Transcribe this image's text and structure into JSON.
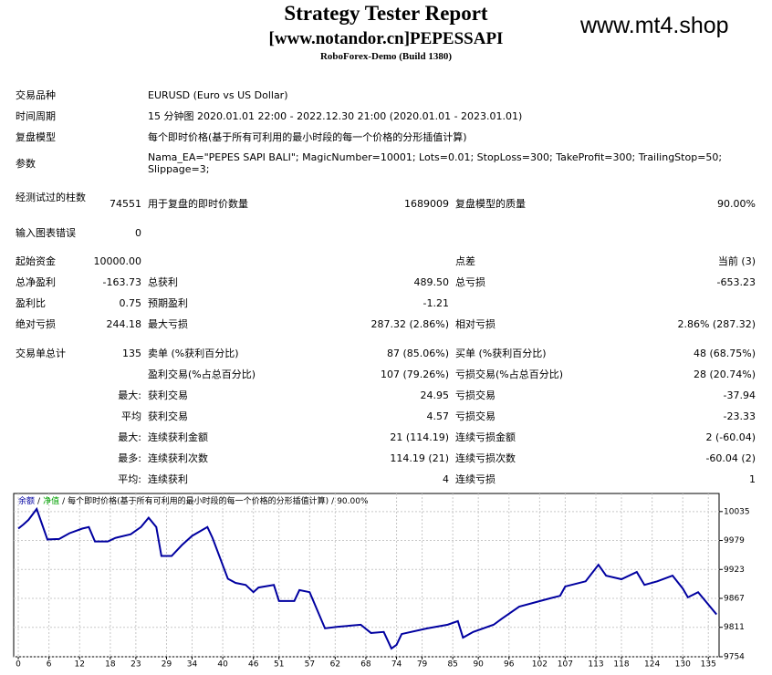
{
  "header": {
    "title": "Strategy Tester Report",
    "subtitle": "[www.notandor.cn]PEPESSAPI",
    "server": "RoboForex-Demo (Build 1380)",
    "watermark": "www.mt4.shop"
  },
  "info": [
    {
      "label": "交易品种",
      "value": "EURUSD (Euro vs US Dollar)"
    },
    {
      "label": "时间周期",
      "value": "15 分钟图 2020.01.01 22:00 - 2022.12.30 21:00 (2020.01.01 - 2023.01.01)"
    },
    {
      "label": "复盘模型",
      "value": "每个即时价格(基于所有可利用的最小时段的每一个价格的分形插值计算)"
    },
    {
      "label": "参数",
      "value": "Nama_EA=\"PEPES SAPI BALI\"; MagicNumber=10001; Lots=0.01; StopLoss=300; TakeProfit=300; TrailingStop=50; Slippage=3;"
    }
  ],
  "stats": [
    [
      "经测试过的柱数",
      "74551",
      "用于复盘的即时价数量",
      "1689009",
      "复盘模型的质量",
      "90.00%"
    ],
    [
      "输入图表错误",
      "0",
      null,
      null,
      null,
      null
    ],
    [
      "起始资金",
      "10000.00",
      null,
      null,
      "点差",
      "当前 (3)"
    ],
    [
      "总净盈利",
      "-163.73",
      "总获利",
      "489.50",
      "总亏损",
      "-653.23"
    ],
    [
      "盈利比",
      "0.75",
      "预期盈利",
      "-1.21",
      null,
      null
    ],
    [
      "绝对亏损",
      "244.18",
      "最大亏损",
      "287.32 (2.86%)",
      "相对亏损",
      "2.86% (287.32)"
    ],
    [
      "交易单总计",
      "135",
      "卖单 (%获利百分比)",
      "87 (85.06%)",
      "买单 (%获利百分比)",
      "48 (68.75%)"
    ],
    [
      null,
      null,
      "盈利交易(%占总百分比)",
      "107 (79.26%)",
      "亏损交易(%占总百分比)",
      "28 (20.74%)"
    ],
    [
      null,
      "最大:",
      "获利交易",
      "24.95",
      "亏损交易",
      "-37.94"
    ],
    [
      null,
      "平均",
      "获利交易",
      "4.57",
      "亏损交易",
      "-23.33"
    ],
    [
      null,
      "最大:",
      "连续获利金额",
      "21 (114.19)",
      "连续亏损金额",
      "2 (-60.04)"
    ],
    [
      null,
      "最多:",
      "连续获利次数",
      "114.19 (21)",
      "连续亏损次数",
      "-60.04 (2)"
    ],
    [
      null,
      "平均:",
      "连续获利",
      "4",
      "连续亏损",
      "1"
    ]
  ],
  "chart_data": {
    "type": "line",
    "separator": "/",
    "legend_extra": [
      {
        "text": "净值",
        "color": "#00a000"
      },
      {
        "text": "每个即时价格(基于所有可利用的最小时段的每一个价格的分形插值计算)",
        "color": "#000000"
      },
      {
        "text": "90.00%",
        "color": "#000000"
      }
    ],
    "x": [
      0,
      1,
      2,
      3.6,
      5.7,
      8,
      10,
      12.5,
      13.8,
      15,
      17.5,
      19,
      22,
      24,
      25.5,
      27,
      28,
      30,
      32,
      34,
      37,
      38,
      41,
      42.5,
      44.5,
      46,
      47,
      50,
      51,
      54,
      55,
      57,
      60,
      62.5,
      67,
      69,
      71.5,
      73,
      74,
      75,
      80,
      84,
      86,
      87,
      89,
      93,
      94.5,
      98,
      104,
      106,
      107,
      111,
      113.5,
      115,
      118,
      121,
      122.5,
      125,
      128,
      130,
      131,
      133,
      135,
      136.6
    ],
    "series": [
      {
        "name": "余额",
        "color": "#0000a0",
        "values": [
          10002,
          10010,
          10019,
          10040,
          9981,
          9982,
          9993,
          10002,
          10005,
          9977,
          9977,
          9984,
          9991,
          10005,
          10023,
          10005,
          9949,
          9949,
          9970,
          9988,
          10005,
          9984,
          9905,
          9897,
          9893,
          9879,
          9888,
          9893,
          9862,
          9862,
          9883,
          9879,
          9809,
          9812,
          9816,
          9800,
          9802,
          9770,
          9777,
          9798,
          9809,
          9816,
          9823,
          9791,
          9802,
          9816,
          9827,
          9851,
          9867,
          9872,
          9890,
          9900,
          9932,
          9911,
          9904,
          9918,
          9893,
          9900,
          9911,
          9886,
          9869,
          9879,
          9855,
          9836
        ]
      }
    ],
    "xlim": [
      -0.9,
      137.1
    ],
    "ylim": [
      9754,
      10070
    ],
    "xticks": [
      0,
      6,
      12,
      18,
      23,
      29,
      34,
      40,
      46,
      51,
      57,
      62,
      68,
      74,
      79,
      85,
      90,
      96,
      102,
      107,
      113,
      118,
      124,
      130,
      135
    ],
    "yticks": [
      9754,
      9811,
      9867,
      9923,
      9979,
      10035
    ],
    "grid": true
  }
}
